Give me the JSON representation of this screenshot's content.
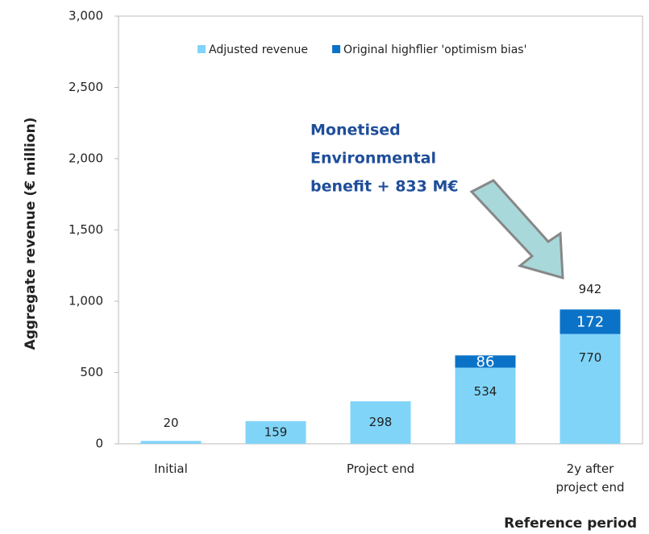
{
  "chart_data": {
    "type": "bar",
    "stacked": true,
    "y_axis_label": "Aggregate revenue (€ million)",
    "x_axis_label": "Reference period",
    "categories": [
      "Initial",
      null,
      "Project end",
      null,
      "2y after project end"
    ],
    "series": [
      {
        "name": "Adjusted revenue",
        "color": "#80d4f8",
        "values": [
          20,
          159,
          298,
          534,
          770
        ]
      },
      {
        "name": "Original highflier 'optimism bias'",
        "color": "#0b73c7",
        "values": [
          null,
          null,
          null,
          86,
          172
        ]
      }
    ],
    "totals": [
      null,
      null,
      null,
      null,
      942
    ],
    "annotation": [
      "Monetised",
      "Environmental",
      "benefit  + 833 M€"
    ],
    "ylim": [
      0,
      3000
    ],
    "yticks": [
      0,
      500,
      {
        "value": 1000,
        "label": "1,000"
      },
      {
        "value": 1500,
        "label": "1,500"
      },
      {
        "value": 2000,
        "label": "2,000"
      },
      {
        "value": 2500,
        "label": "2,500"
      },
      {
        "value": 3000,
        "label": "3,000"
      }
    ],
    "legend": "top"
  }
}
